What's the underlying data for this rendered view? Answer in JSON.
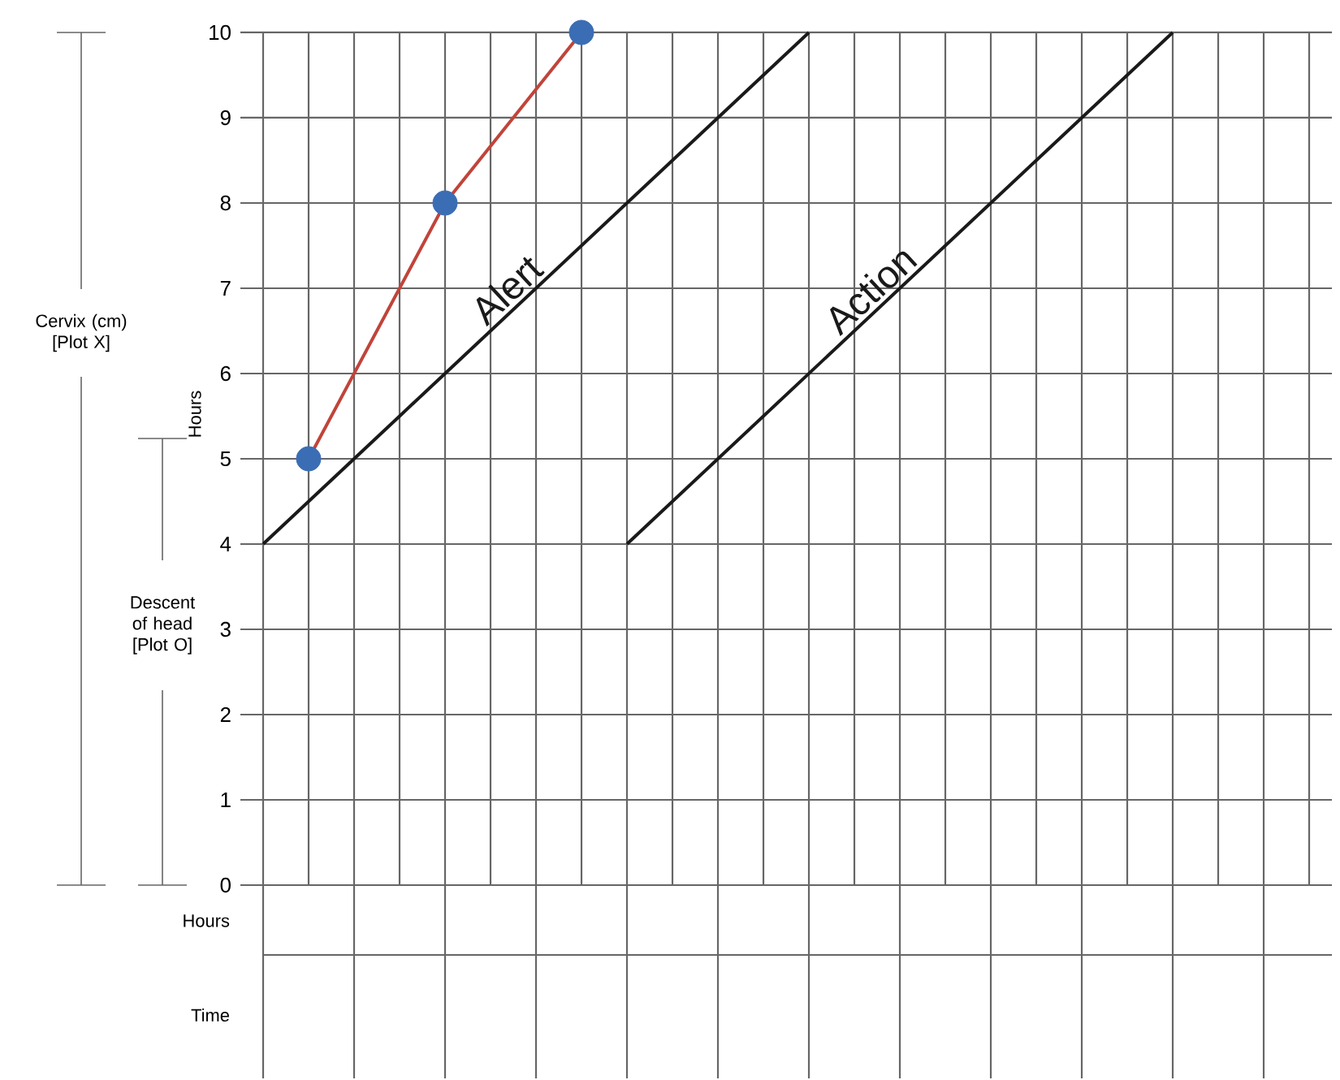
{
  "chart_data": {
    "type": "line",
    "ylabel": "Hours",
    "annotations": [
      "Cervix (cm) [Plot X]",
      "Descent of head [Plot O]",
      "Hours",
      "Time"
    ],
    "categories": [
      null,
      null,
      null,
      null,
      null,
      null,
      null,
      null,
      null,
      null,
      null,
      null,
      null,
      null,
      null,
      null,
      null,
      null,
      null,
      null,
      null,
      null,
      null,
      null
    ],
    "ylim": [
      0,
      10
    ],
    "yticks": [
      0,
      1,
      2,
      3,
      4,
      5,
      6,
      7,
      8,
      9,
      10
    ],
    "grid": true,
    "tick_labels": "y",
    "series": [
      {
        "type": "line",
        "name": "Alert",
        "color": "#1a1a1a",
        "values": [
          4,
          4.5,
          5,
          5.5,
          6,
          6.5,
          7,
          7.5,
          8,
          8.5,
          9,
          9.5,
          10,
          null,
          null,
          null,
          null,
          null,
          null,
          null,
          null,
          null,
          null,
          null
        ],
        "line_style": "solid"
      },
      {
        "type": "line",
        "name": "Action",
        "color": "#1a1a1a",
        "values": [
          null,
          null,
          null,
          null,
          null,
          null,
          null,
          null,
          4,
          4.5,
          5,
          5.5,
          6,
          6.5,
          7,
          7.5,
          8,
          8.5,
          9,
          9.5,
          10,
          null,
          null,
          null
        ],
        "line_style": "solid"
      },
      {
        "type": "scatter",
        "color": "#3b6db4",
        "values": [
          null,
          5,
          null,
          null,
          8,
          null,
          null,
          10,
          null,
          null,
          null,
          null,
          null,
          null,
          null,
          null,
          null,
          null,
          null,
          null,
          null,
          null,
          null,
          null
        ]
      },
      {
        "type": "line",
        "color": "#c0443a",
        "values": [
          null,
          5,
          null,
          null,
          8,
          null,
          null,
          10,
          null,
          null,
          null,
          null,
          null,
          null,
          null,
          null,
          null,
          null,
          null,
          null,
          null,
          null,
          null,
          null
        ],
        "line_style": "solid"
      }
    ]
  }
}
